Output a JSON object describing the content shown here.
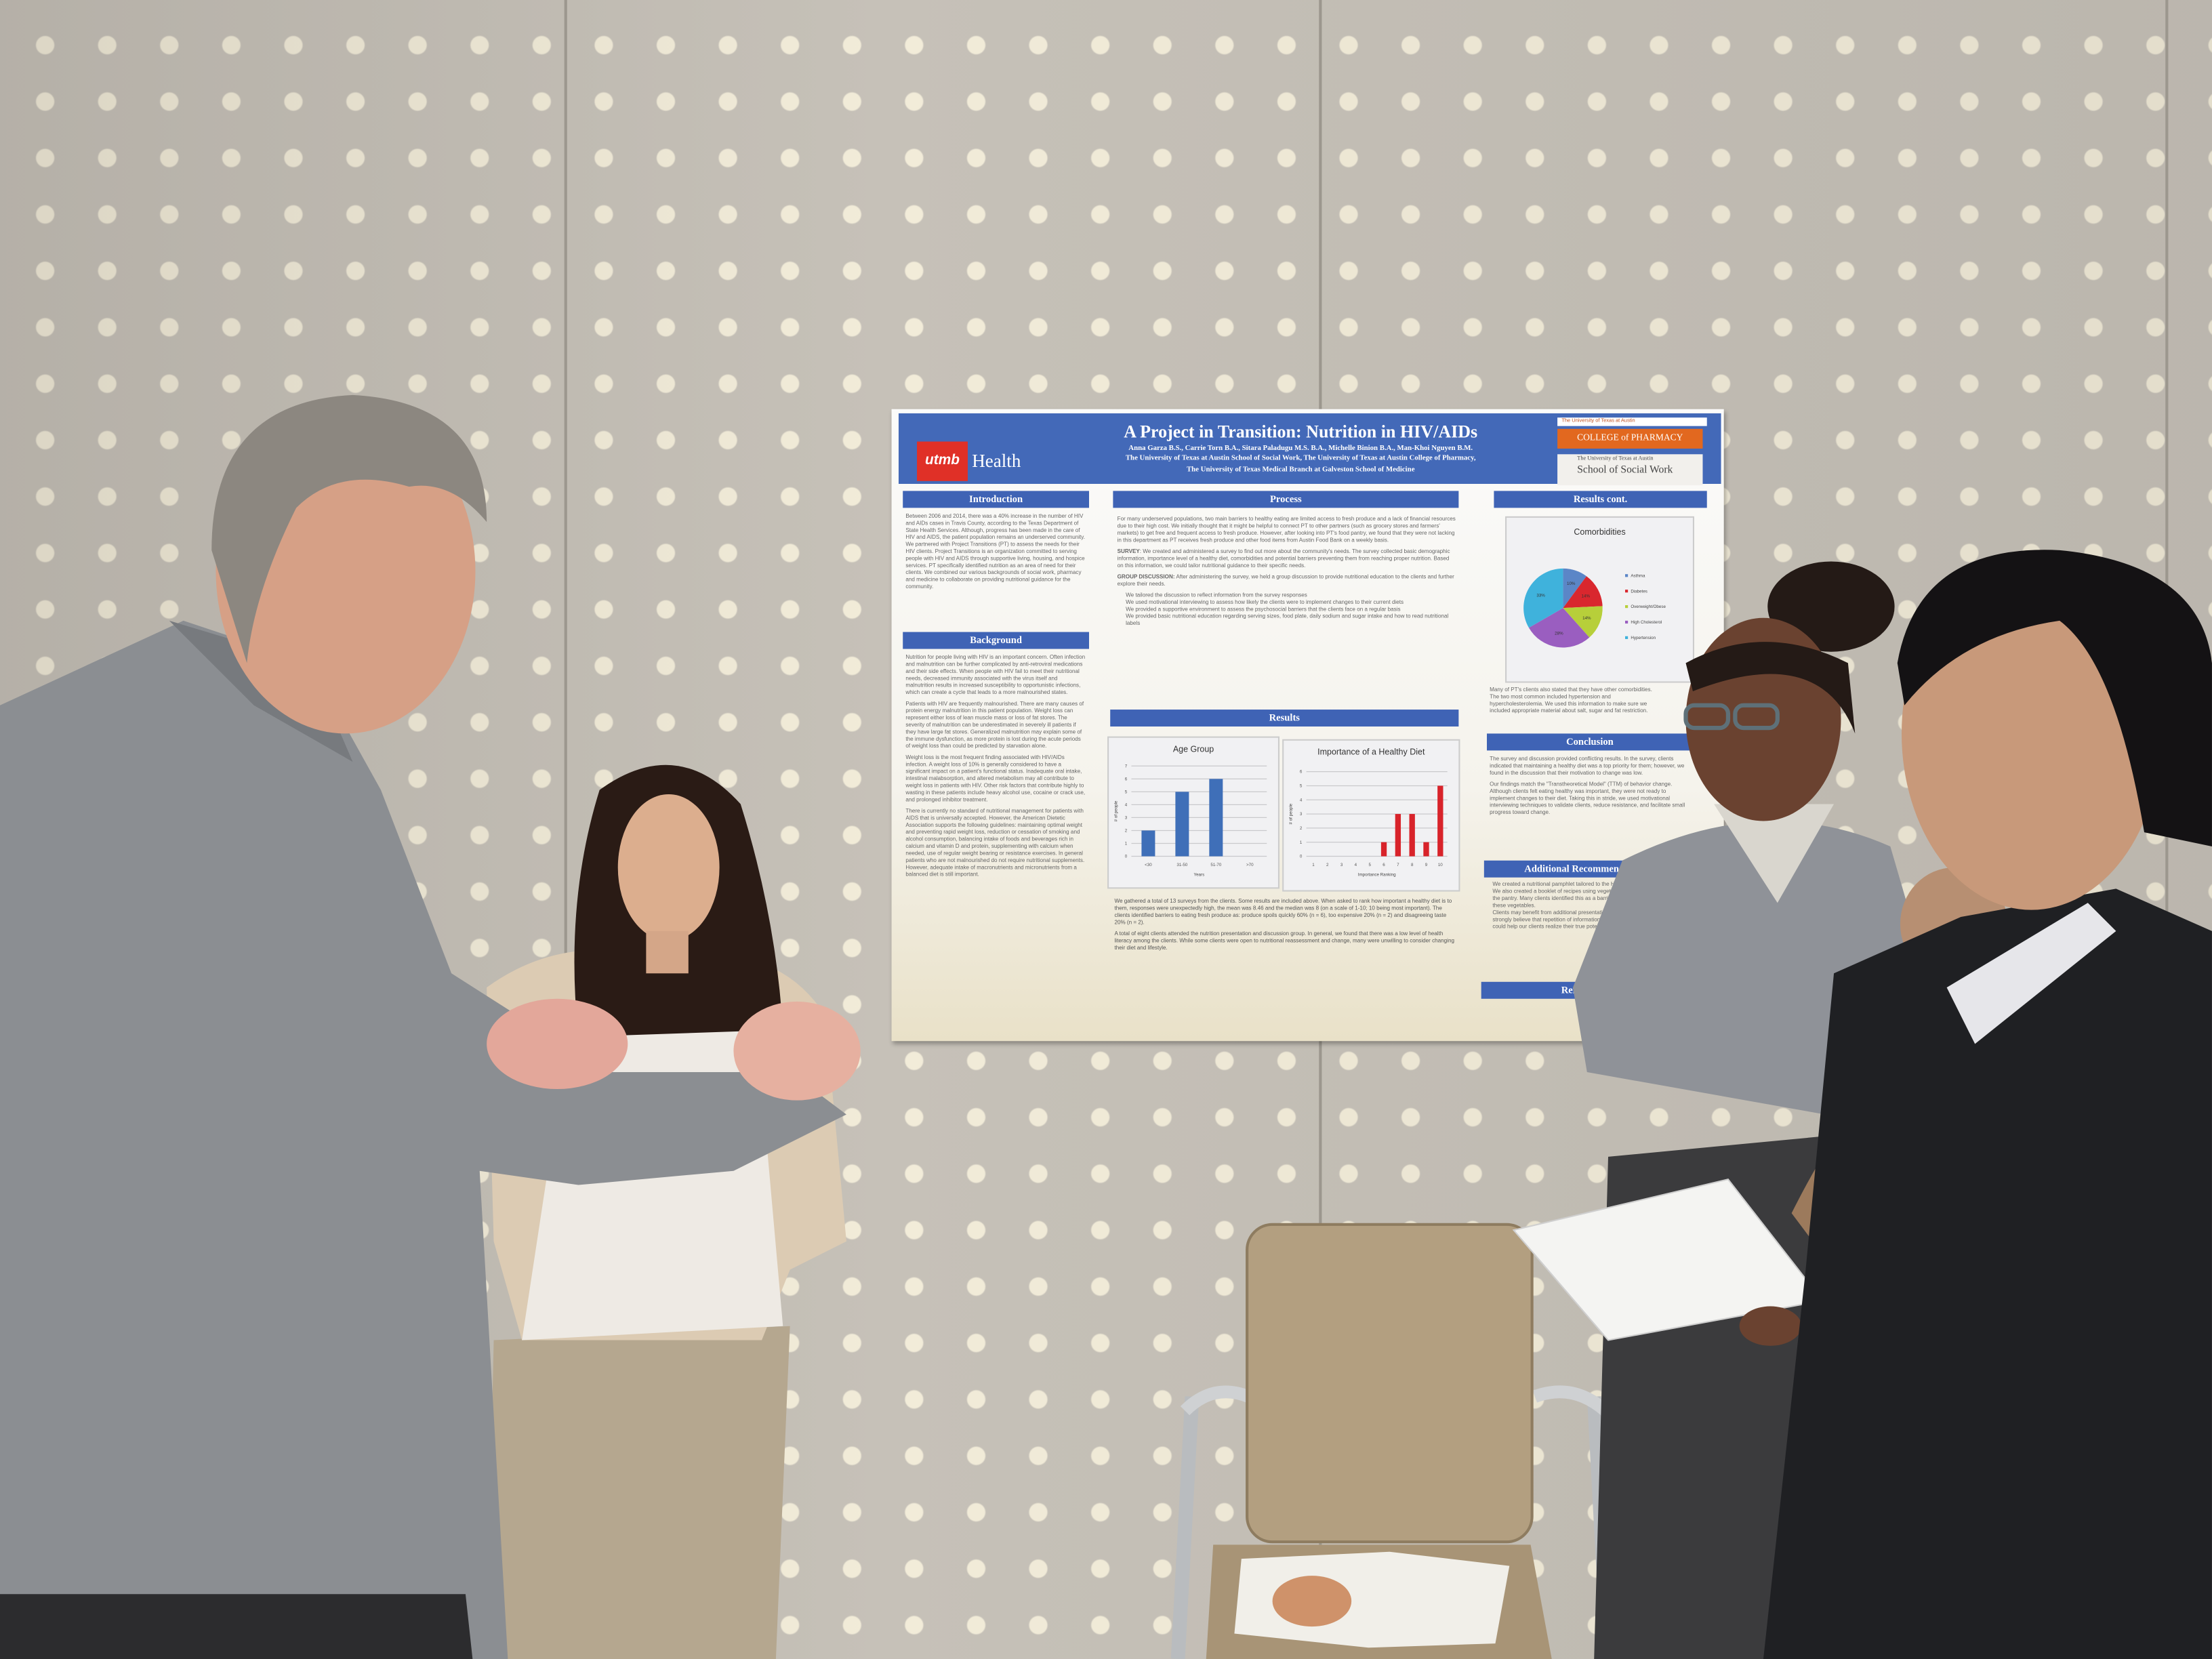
{
  "poster": {
    "title": "A Project in Transition: Nutrition in HIV/AIDs",
    "authors": "Anna Garza B.S., Carrie Torn B.A., Sitara Paladugu M.S. B.A., Michelle Binion B.A., Man-Khoi Nguyen B.M.",
    "affiliation_1": "The University of Texas at Austin School of Social Work, The University of Texas at Austin College of Pharmacy,",
    "affiliation_2": "The University of Texas Medical Branch at Galveston School of Medicine",
    "logos": {
      "utmb": "utmb",
      "utmb_health": "Health",
      "ut_austin": "The University of Texas at Austin",
      "pharmacy": "COLLEGE of PHARMACY",
      "ssw_top": "The University of Texas at Austin",
      "ssw_bottom": "School of Social Work"
    },
    "colors": {
      "header_blue": "#4369b8",
      "utmb_red": "#e03027",
      "pharmacy_orange": "#e2681f"
    },
    "sections": {
      "introduction": {
        "heading": "Introduction",
        "text": "Between 2006 and 2014, there was a 40% increase in the number of HIV and AIDs cases in Travis County, according to the Texas Department of State Health Services. Although, progress has been made in the care of HIV and AIDS, the patient population remains an underserved community. We partnered with Project Transitions (PT) to assess the needs for their HIV clients. Project Transitions is an organization committed to serving people with HIV and AIDS through supportive living, housing, and hospice services. PT specifically identified nutrition as an area of need for their clients. We combined our various backgrounds of social work, pharmacy and medicine to collaborate on providing nutritional guidance for the community."
      },
      "background": {
        "heading": "Background",
        "p1": "Nutrition for people living with HIV is an important concern. Often infection and malnutrition can be further complicated by anti-retroviral medications and their side effects. When people with HIV fail to meet their nutritional needs, decreased immunity associated with the virus itself and malnutrition results in increased susceptibility to opportunistic infections, which can create a cycle that leads to a more malnourished states.",
        "p2": "Patients with HIV are frequently malnourished. There are many causes of protein energy malnutrition in this patient population. Weight loss can represent either loss of lean muscle mass or loss of fat stores. The severity of malnutrition can be underestimated in severely ill patients if they have large fat stores. Generalized malnutrition may explain some of the immune dysfunction, as more protein is lost during the acute periods of weight loss than could be predicted by starvation alone.",
        "p3": "Weight loss is the most frequent finding associated with HIV/AIDs infection. A weight loss of 10% is generally considered to have a significant impact on a patient's functional status. Inadequate oral intake, intestinal malabsorption, and altered metabolism may all contribute to weight loss in patients with HIV. Other risk factors that contribute highly to wasting in these patients include heavy alcohol use, cocaine or crack use, and prolonged inhibitor treatment.",
        "p4": "There is currently no standard of nutritional management for patients with AIDS that is universally accepted. However, the American Dietetic Association supports the following guidelines: maintaining optimal weight and preventing rapid weight loss, reduction or cessation of smoking and alcohol consumption, balancing intake of foods and beverages rich in calcium and vitamin D and protein, supplementing with calcium when needed, use of regular weight bearing or resistance exercises. In general patients who are not malnourished do not require nutritional supplements. However, adequate intake of macronutrients and micronutrients from a balanced diet is still important."
      },
      "process": {
        "heading": "Process",
        "p1": "For many underserved populations, two main barriers to healthy eating are limited access to fresh produce and a lack of financial resources due to their high cost. We initially thought that it might be helpful to connect PT to other partners (such as grocery stores and farmers' markets) to get free and frequent access to fresh produce. However, after looking into PT's food pantry, we found that they were not lacking in this department as PT receives fresh produce and other food items from Austin Food Bank on a weekly basis.",
        "survey_label": "SURVEY",
        "survey_text": ": We created and administered a survey to find out more about the community's needs. The survey collected basic demographic information, importance level of a healthy diet, comorbidities and potential barriers preventing them from reaching proper nutrition. Based on this information, we could tailor nutritional guidance to their specific needs.",
        "group_label": "GROUP DISCUSSION:",
        "group_text": " After administering the survey, we held a group discussion to provide nutritional education to the clients and further explore their needs.",
        "bullets": [
          "We tailored the discussion to reflect information from the survey responses",
          "We used motivational interviewing to assess how likely the clients were to implement changes to their current diets",
          "We provided a supportive environment to assess the psychosocial barriers that the clients face on a regular basis",
          "We provided basic nutritional education regarding serving sizes, food plate, daily sodium and sugar intake and how to read nutritional labels"
        ]
      },
      "results": {
        "heading": "Results",
        "p1": "We gathered a total of 13 surveys from the clients. Some results are included above. When asked to rank how important a healthy diet is to them, responses were unexpectedly high, the mean was 8.46 and the median was 8 (on a scale of 1-10; 10 being most important). The clients identified barriers to eating fresh produce as: produce spoils quickly 60% (n = 6), too expensive 20% (n = 2) and disagreeing taste 20% (n = 2).",
        "p2": "A total of eight clients attended the nutrition presentation and discussion group. In general, we found that there was a low level of health literacy among the clients. While some clients were open to nutritional reassessment and change, many were unwilling to consider changing their diet and lifestyle."
      },
      "results_cont": {
        "heading": "Results cont.",
        "text": "Many of PT's clients also stated that they have other comorbidities. The two most common included hypertension and hypercholesterolemia. We used this information to make sure we included appropriate material about salt, sugar and fat restriction."
      },
      "conclusion": {
        "heading": "Conclusion",
        "p1": "The survey and discussion provided conflicting results. In the survey, clients indicated that maintaining a healthy diet was a top priority for them; however, we found in the discussion that their motivation to change was low.",
        "p2": "Our findings match the \"Transtheoretical Model\" (TTM) of behavior change. Although clients felt eating healthy was important, they were not ready to implement changes to their diet. Taking this in stride, we used motivational interviewing techniques to validate clients, reduce resistance, and facilitate small progress toward change."
      },
      "recommendations": {
        "heading": "Additional Recommendations",
        "bullets": [
          "We created a nutritional pamphlet tailored to the HIV/AIDS population.",
          "We also created a booklet of recipes using vegetables commonly available in the pantry. Many clients identified this as a barrier for not knowing how to use these vegetables.",
          "Clients may benefit from additional presentations and discussion groups. We strongly believe that repetition of information from an interprofessional team could help our clients realize their true potential."
        ]
      },
      "references": {
        "heading": "References"
      }
    },
    "charts": {
      "age_group": {
        "type": "bar",
        "title": "Age Group",
        "xlabel": "Years",
        "ylabel": "# of people",
        "categories": [
          "<30",
          "31-50",
          "51-70",
          ">70"
        ],
        "values": [
          2,
          5,
          6,
          0
        ],
        "ylim": [
          0,
          7
        ],
        "yticks": [
          "0",
          "1",
          "2",
          "3",
          "4",
          "5",
          "6",
          "7"
        ],
        "color": "#3f6fb8"
      },
      "healthy_diet": {
        "type": "bar",
        "title": "Importance of a Healthy Diet",
        "xlabel": "Importance Ranking",
        "ylabel": "# of people",
        "categories": [
          "1",
          "2",
          "3",
          "4",
          "5",
          "6",
          "7",
          "8",
          "9",
          "10"
        ],
        "values": [
          0,
          0,
          0,
          0,
          0,
          1,
          3,
          3,
          1,
          5
        ],
        "ylim": [
          0,
          6
        ],
        "yticks": [
          "0",
          "1",
          "2",
          "3",
          "4",
          "5",
          "6"
        ],
        "color": "#d8232a"
      },
      "comorbidities": {
        "type": "pie",
        "title": "Comorbidities",
        "slices": [
          {
            "label": "Asthma",
            "value": 10,
            "text": "10%",
            "color": "#5b86c7"
          },
          {
            "label": "Diabetes",
            "value": 14,
            "text": "14%",
            "color": "#d9272e"
          },
          {
            "label": "Overweight/Obese",
            "value": 14,
            "text": "14%",
            "color": "#b7cf3a"
          },
          {
            "label": "High Cholesterol",
            "value": 28,
            "text": "28%",
            "color": "#9a5ec0"
          },
          {
            "label": "Hypertension",
            "value": 33,
            "text": "33%",
            "color": "#3fb2dc"
          }
        ]
      }
    }
  }
}
